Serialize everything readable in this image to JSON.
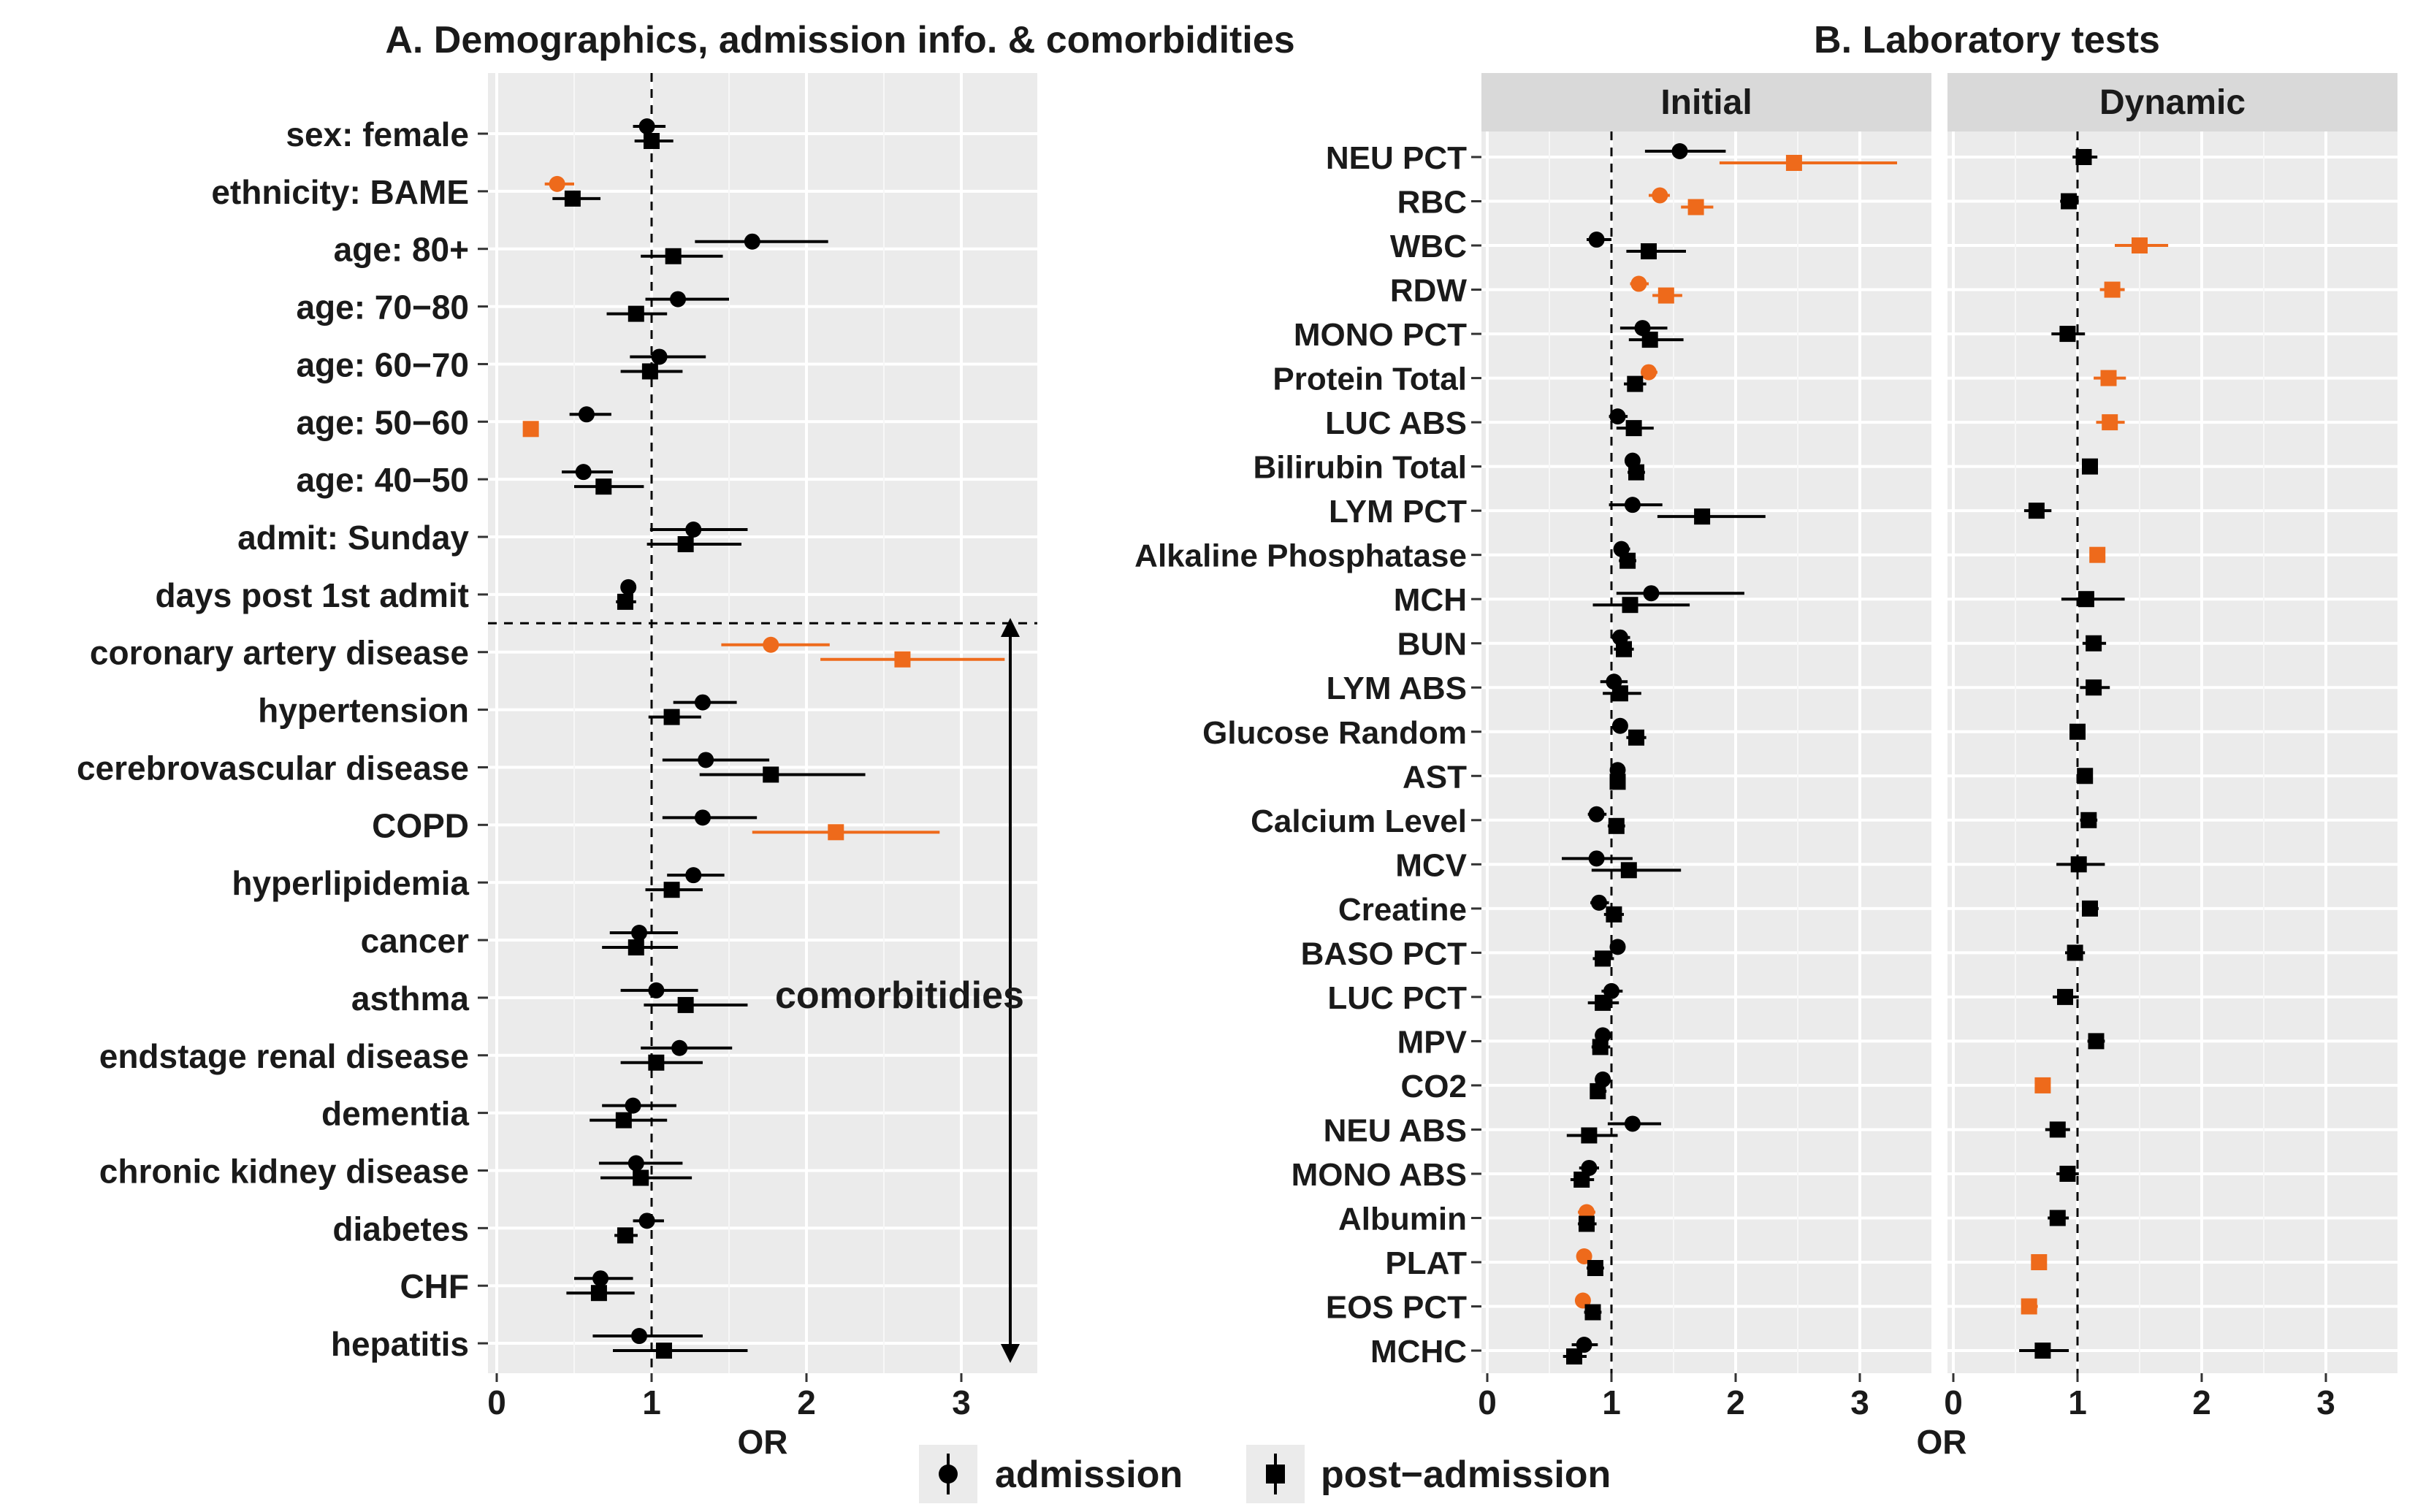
{
  "colors": {
    "significant": "#EE6A1B",
    "normal": "#000000",
    "panel_bg": "#EBEBEB",
    "strip_bg": "#D9D9D9"
  },
  "legend": {
    "items": [
      {
        "label": "admission",
        "shape": "circle"
      },
      {
        "label": "post−admission",
        "shape": "square"
      }
    ]
  },
  "chart_data": [
    {
      "type": "forest",
      "title": "A. Demographics, admission info. & comorbidities",
      "xlabel": "OR",
      "xlim": [
        0,
        3.5
      ],
      "xticks": [
        "0",
        "1",
        "2",
        "3"
      ],
      "reference_line": 1,
      "group_annotation": "comorbitidies",
      "categories": [
        "sex: female",
        "ethnicity: BAME",
        "age: 80+",
        "age: 70−80",
        "age: 60−70",
        "age: 50−60",
        "age: 40−50",
        "admit: Sunday",
        "days post 1st admit",
        "coronary artery disease",
        "hypertension",
        "cerebrovascular disease",
        "COPD",
        "hyperlipidemia",
        "cancer",
        "asthma",
        "endstage renal disease",
        "dementia",
        "chronic kidney disease",
        "diabetes",
        "CHF",
        "hepatitis"
      ],
      "series": [
        {
          "name": "admission",
          "shape": "circle",
          "or": [
            0.97,
            0.39,
            1.65,
            1.17,
            1.05,
            0.58,
            0.56,
            1.27,
            0.85,
            1.77,
            1.33,
            1.35,
            1.33,
            1.27,
            0.92,
            1.03,
            1.18,
            0.88,
            0.9,
            0.97,
            0.67,
            0.92
          ],
          "low": [
            0.88,
            0.31,
            1.28,
            0.96,
            0.86,
            0.47,
            0.42,
            0.99,
            0.8,
            1.45,
            1.14,
            1.07,
            1.07,
            1.1,
            0.73,
            0.8,
            0.93,
            0.68,
            0.66,
            0.88,
            0.5,
            0.62
          ],
          "high": [
            1.09,
            0.5,
            2.14,
            1.5,
            1.35,
            0.74,
            0.75,
            1.62,
            0.9,
            2.15,
            1.55,
            1.76,
            1.68,
            1.47,
            1.17,
            1.3,
            1.52,
            1.16,
            1.2,
            1.08,
            0.88,
            1.33
          ],
          "significant": [
            false,
            true,
            false,
            false,
            false,
            false,
            false,
            false,
            false,
            true,
            false,
            false,
            false,
            false,
            false,
            false,
            false,
            false,
            false,
            false,
            false,
            false
          ]
        },
        {
          "name": "post−admission",
          "shape": "square",
          "or": [
            1.0,
            0.49,
            1.14,
            0.9,
            0.99,
            0.22,
            0.69,
            1.22,
            0.83,
            2.62,
            1.13,
            1.77,
            2.19,
            1.13,
            0.9,
            1.22,
            1.03,
            0.82,
            0.93,
            0.83,
            0.66,
            1.08
          ],
          "low": [
            0.89,
            0.36,
            0.93,
            0.71,
            0.8,
            0.19,
            0.5,
            0.97,
            0.77,
            2.09,
            0.98,
            1.31,
            1.65,
            0.96,
            0.68,
            0.95,
            0.8,
            0.6,
            0.67,
            0.76,
            0.45,
            0.75
          ],
          "high": [
            1.14,
            0.67,
            1.46,
            1.1,
            1.2,
            0.26,
            0.95,
            1.58,
            0.9,
            3.28,
            1.32,
            2.38,
            2.86,
            1.33,
            1.17,
            1.62,
            1.33,
            1.1,
            1.26,
            0.91,
            0.89,
            1.62
          ],
          "significant": [
            false,
            false,
            false,
            false,
            false,
            true,
            false,
            false,
            false,
            true,
            false,
            false,
            true,
            false,
            false,
            false,
            false,
            false,
            false,
            false,
            false,
            false
          ]
        }
      ]
    },
    {
      "type": "forest",
      "title": "B. Laboratory tests",
      "xlabel": "OR",
      "xlim": [
        0,
        3.5
      ],
      "xticks": [
        "0",
        "1",
        "2",
        "3"
      ],
      "reference_line": 1,
      "facets": [
        "Initial",
        "Dynamic"
      ],
      "categories": [
        "NEU PCT",
        "RBC",
        "WBC",
        "RDW",
        "MONO PCT",
        "Protein Total",
        "LUC ABS",
        "Bilirubin Total",
        "LYM PCT",
        "Alkaline Phosphatase",
        "MCH",
        "BUN",
        "LYM ABS",
        "Glucose Random",
        "AST",
        "Calcium Level",
        "MCV",
        "Creatine",
        "BASO PCT",
        "LUC PCT",
        "MPV",
        "CO2",
        "NEU ABS",
        "MONO ABS",
        "Albumin",
        "PLAT",
        "EOS PCT",
        "MCHC"
      ],
      "initial": {
        "admission": {
          "or": [
            1.55,
            1.39,
            0.88,
            1.22,
            1.25,
            1.3,
            1.05,
            1.17,
            1.17,
            1.08,
            1.32,
            1.07,
            1.02,
            1.07,
            1.05,
            0.88,
            0.88,
            0.9,
            1.05,
            1.0,
            0.93,
            0.93,
            1.17,
            0.82,
            0.8,
            0.78,
            0.77,
            0.78
          ],
          "low": [
            1.27,
            1.3,
            0.8,
            1.15,
            1.07,
            1.24,
            0.98,
            1.12,
            0.98,
            1.02,
            1.04,
            1.0,
            0.91,
            1.02,
            1.01,
            0.81,
            0.6,
            0.83,
            1.0,
            0.92,
            0.87,
            0.88,
            0.97,
            0.74,
            0.73,
            0.72,
            0.71,
            0.68
          ],
          "high": [
            1.92,
            1.47,
            1.0,
            1.3,
            1.45,
            1.37,
            1.13,
            1.23,
            1.41,
            1.15,
            2.07,
            1.15,
            1.13,
            1.12,
            1.1,
            0.96,
            1.17,
            0.98,
            1.1,
            1.09,
            1.0,
            0.98,
            1.4,
            0.9,
            0.87,
            0.84,
            0.83,
            0.89
          ],
          "significant": [
            false,
            true,
            false,
            true,
            false,
            true,
            false,
            false,
            false,
            false,
            false,
            false,
            false,
            false,
            false,
            false,
            false,
            false,
            false,
            false,
            false,
            false,
            false,
            false,
            true,
            true,
            true,
            false
          ]
        },
        "post_admission": {
          "or": [
            2.47,
            1.68,
            1.3,
            1.44,
            1.31,
            1.19,
            1.18,
            1.2,
            1.73,
            1.13,
            1.15,
            1.1,
            1.07,
            1.2,
            1.05,
            1.04,
            1.14,
            1.02,
            0.93,
            0.93,
            0.91,
            0.89,
            0.82,
            0.76,
            0.8,
            0.87,
            0.85,
            0.7
          ],
          "low": [
            1.87,
            1.56,
            1.12,
            1.33,
            1.14,
            1.1,
            1.04,
            1.13,
            1.37,
            1.06,
            0.85,
            1.02,
            0.93,
            1.12,
            1.0,
            0.97,
            0.84,
            0.94,
            0.85,
            0.81,
            0.84,
            0.83,
            0.64,
            0.67,
            0.73,
            0.8,
            0.78,
            0.61
          ],
          "high": [
            3.3,
            1.82,
            1.6,
            1.57,
            1.58,
            1.28,
            1.34,
            1.27,
            2.24,
            1.2,
            1.63,
            1.18,
            1.24,
            1.28,
            1.1,
            1.11,
            1.56,
            1.1,
            1.02,
            1.06,
            0.99,
            0.96,
            1.05,
            0.86,
            0.88,
            0.94,
            0.92,
            0.8
          ],
          "significant": [
            true,
            true,
            false,
            true,
            false,
            false,
            false,
            false,
            false,
            false,
            false,
            false,
            false,
            false,
            false,
            false,
            false,
            false,
            false,
            false,
            false,
            false,
            false,
            false,
            false,
            false,
            false,
            false
          ]
        }
      },
      "dynamic": {
        "post_admission": {
          "or": [
            1.05,
            0.93,
            1.5,
            1.28,
            0.92,
            1.25,
            1.26,
            1.1,
            0.67,
            1.16,
            1.07,
            1.13,
            1.13,
            1.0,
            1.06,
            1.09,
            1.01,
            1.1,
            0.98,
            0.9,
            1.15,
            0.72,
            0.84,
            0.92,
            0.84,
            0.69,
            0.61,
            0.72
          ],
          "low": [
            0.96,
            0.86,
            1.3,
            1.18,
            0.79,
            1.13,
            1.15,
            1.04,
            0.57,
            1.1,
            0.87,
            1.04,
            1.02,
            0.95,
            1.0,
            1.02,
            0.83,
            1.04,
            0.9,
            0.8,
            1.08,
            0.66,
            0.74,
            0.83,
            0.76,
            0.63,
            0.55,
            0.53
          ],
          "high": [
            1.16,
            1.01,
            1.73,
            1.38,
            1.06,
            1.39,
            1.38,
            1.16,
            0.79,
            1.22,
            1.38,
            1.23,
            1.26,
            1.05,
            1.12,
            1.16,
            1.22,
            1.17,
            1.06,
            1.01,
            1.22,
            0.78,
            0.94,
            1.01,
            0.93,
            0.75,
            0.68,
            0.93
          ],
          "significant": [
            false,
            false,
            true,
            true,
            false,
            true,
            true,
            false,
            false,
            true,
            false,
            false,
            false,
            false,
            false,
            false,
            false,
            false,
            false,
            false,
            false,
            true,
            false,
            false,
            false,
            true,
            true,
            false
          ]
        }
      }
    }
  ]
}
